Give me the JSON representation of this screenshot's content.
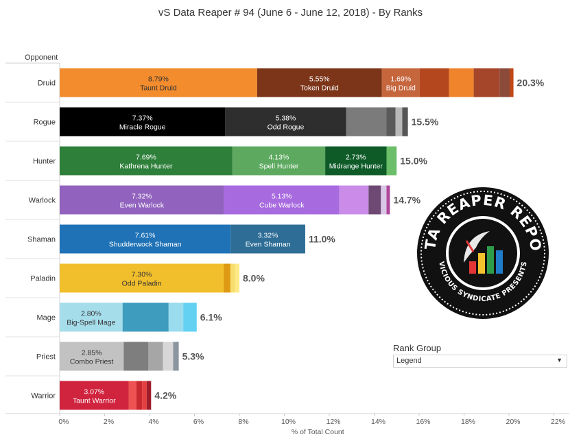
{
  "title": "vS Data Reaper #  94 (June 6 - June 12, 2018) - By Ranks",
  "axis_header": "Opponent",
  "rank_filter": {
    "label": "Rank Group",
    "selected": "Legend",
    "arrow_icon": "triangle-down-icon"
  },
  "logo": {
    "text_top": "DATA REAPER REPORT",
    "text_bottom": "VICIOUS SYNDICATE PRESENTS"
  },
  "chart_data": {
    "type": "bar",
    "orientation": "horizontal",
    "stacked": true,
    "xlabel": "% of Total Count",
    "ylabel": "Opponent",
    "xlim": [
      0,
      22
    ],
    "xticks": [
      "0%",
      "2%",
      "4%",
      "6%",
      "8%",
      "10%",
      "12%",
      "14%",
      "16%",
      "18%",
      "20%",
      "22%"
    ],
    "grid": false,
    "categories": [
      "Druid",
      "Rogue",
      "Hunter",
      "Warlock",
      "Shaman",
      "Paladin",
      "Mage",
      "Priest",
      "Warrior"
    ],
    "rows": [
      {
        "class": "Druid",
        "total": "20.3%",
        "segments": [
          {
            "name": "Taunt Druid",
            "value": 8.79,
            "label": "8.79%",
            "color": "#F28C2D",
            "text_color": "#333333"
          },
          {
            "name": "Token Druid",
            "value": 5.55,
            "label": "5.55%",
            "color": "#7C3519",
            "text_color": "#ffffff"
          },
          {
            "name": "Big Druid",
            "value": 1.69,
            "label": "1.69%",
            "color": "#C5663D",
            "text_color": "#ffffff"
          },
          {
            "value": 1.3,
            "color": "#B5471E"
          },
          {
            "value": 1.1,
            "color": "#F0842C"
          },
          {
            "value": 1.15,
            "color": "#A5452A"
          },
          {
            "value": 0.45,
            "color": "#8B4A3A"
          },
          {
            "value": 0.17,
            "color": "#C04818"
          }
        ]
      },
      {
        "class": "Rogue",
        "total": "15.5%",
        "segments": [
          {
            "name": "Miracle Rogue",
            "value": 7.37,
            "label": "7.37%",
            "color": "#000000",
            "text_color": "#ffffff"
          },
          {
            "name": "Odd Rogue",
            "value": 5.38,
            "label": "5.38%",
            "color": "#2E2E2E",
            "text_color": "#ffffff"
          },
          {
            "value": 1.8,
            "color": "#7B7B7B"
          },
          {
            "value": 0.4,
            "color": "#5A5A5A"
          },
          {
            "value": 0.3,
            "color": "#B8B8B8"
          },
          {
            "value": 0.25,
            "color": "#555555"
          }
        ]
      },
      {
        "class": "Hunter",
        "total": "15.0%",
        "segments": [
          {
            "name": "Kathrena Hunter",
            "value": 7.69,
            "label": "7.69%",
            "color": "#2E7F3A",
            "text_color": "#ffffff"
          },
          {
            "name": "Spell Hunter",
            "value": 4.13,
            "label": "4.13%",
            "color": "#5CA95F",
            "text_color": "#ffffff"
          },
          {
            "name": "Midrange Hunter",
            "value": 2.73,
            "label": "2.73%",
            "color": "#0E5B28",
            "text_color": "#ffffff"
          },
          {
            "value": 0.45,
            "color": "#6CBF6A"
          }
        ]
      },
      {
        "class": "Warlock",
        "total": "14.7%",
        "segments": [
          {
            "name": "Even Warlock",
            "value": 7.32,
            "label": "7.32%",
            "color": "#9163BE",
            "text_color": "#ffffff"
          },
          {
            "name": "Cube Warlock",
            "value": 5.13,
            "label": "5.13%",
            "color": "#A86ADF",
            "text_color": "#ffffff"
          },
          {
            "value": 1.3,
            "color": "#CA8CE8"
          },
          {
            "value": 0.55,
            "color": "#6E4973"
          },
          {
            "value": 0.25,
            "color": "#D9C7E6"
          },
          {
            "value": 0.15,
            "color": "#B0479C"
          }
        ]
      },
      {
        "class": "Shaman",
        "total": "11.0%",
        "segments": [
          {
            "name": "Shudderwock Shaman",
            "value": 7.61,
            "label": "7.61%",
            "color": "#1F72B6",
            "text_color": "#ffffff"
          },
          {
            "name": "Even Shaman",
            "value": 3.32,
            "label": "3.32%",
            "color": "#2E6E96",
            "text_color": "#ffffff"
          }
        ]
      },
      {
        "class": "Paladin",
        "total": "8.0%",
        "segments": [
          {
            "name": "Odd Paladin",
            "value": 7.3,
            "label": "7.30%",
            "color": "#F1BE2C",
            "text_color": "#333333"
          },
          {
            "value": 0.3,
            "color": "#DE9A12"
          },
          {
            "value": 0.2,
            "color": "#F7DD6E"
          },
          {
            "value": 0.2,
            "color": "#FFE985"
          }
        ]
      },
      {
        "class": "Mage",
        "total": "6.1%",
        "segments": [
          {
            "name": "Big-Spell Mage",
            "value": 2.8,
            "label": "2.80%",
            "color": "#A6DDEB",
            "text_color": "#333333"
          },
          {
            "value": 2.05,
            "color": "#3E9DBE"
          },
          {
            "value": 0.65,
            "color": "#9ADCEE"
          },
          {
            "value": 0.6,
            "color": "#63D1F2"
          }
        ]
      },
      {
        "class": "Priest",
        "total": "5.3%",
        "segments": [
          {
            "name": "Combo Priest",
            "value": 2.85,
            "label": "2.85%",
            "color": "#C2C2C2",
            "text_color": "#333333"
          },
          {
            "value": 1.1,
            "color": "#7E7E7E"
          },
          {
            "value": 0.65,
            "color": "#A6A6A6"
          },
          {
            "value": 0.45,
            "color": "#D7D7D7"
          },
          {
            "value": 0.25,
            "color": "#8B95A0"
          }
        ]
      },
      {
        "class": "Warrior",
        "total": "4.2%",
        "segments": [
          {
            "name": "Taunt Warrior",
            "value": 3.07,
            "label": "3.07%",
            "color": "#D0233E",
            "text_color": "#ffffff"
          },
          {
            "value": 0.35,
            "color": "#EE5252"
          },
          {
            "value": 0.25,
            "color": "#C8292E"
          },
          {
            "value": 0.2,
            "color": "#E53E3E"
          },
          {
            "value": 0.2,
            "color": "#A11C2A"
          }
        ]
      }
    ]
  }
}
